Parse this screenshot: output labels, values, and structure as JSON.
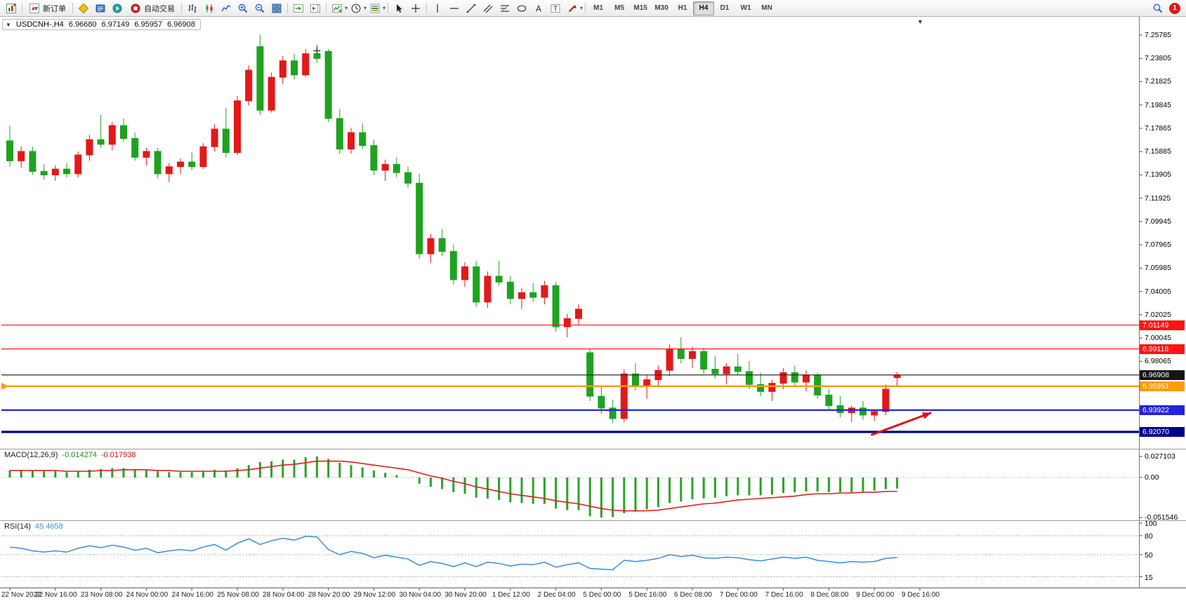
{
  "toolbar": {
    "new_order_label": "新订单",
    "autotrading_label": "自动交易",
    "timeframes": [
      "M1",
      "M5",
      "M15",
      "M30",
      "H1",
      "H4",
      "D1",
      "W1",
      "MN"
    ],
    "active_timeframe": "H4",
    "notification_count": "1",
    "items": [
      {
        "type": "icon",
        "name": "new-chart-icon"
      },
      {
        "type": "sep"
      },
      {
        "type": "button",
        "name": "new-order-button",
        "icon": "new-order-icon",
        "label_key": "new_order_label"
      },
      {
        "type": "sep"
      },
      {
        "type": "icon",
        "name": "metaeditor-icon"
      },
      {
        "type": "icon",
        "name": "terminal-icon"
      },
      {
        "type": "icon",
        "name": "strategy-tester-icon"
      },
      {
        "type": "button",
        "name": "autotrading-button",
        "icon": "autotrading-icon",
        "label_key": "autotrading_label"
      },
      {
        "type": "sep"
      },
      {
        "type": "icon",
        "name": "chart-bars-icon"
      },
      {
        "type": "icon",
        "name": "chart-candles-icon"
      },
      {
        "type": "icon",
        "name": "chart-line-icon"
      },
      {
        "type": "icon",
        "name": "zoom-in-icon"
      },
      {
        "type": "icon",
        "name": "zoom-out-icon"
      },
      {
        "type": "icon",
        "name": "tile-windows-icon"
      },
      {
        "type": "sep"
      },
      {
        "type": "icon",
        "name": "auto-scroll-icon"
      },
      {
        "type": "icon",
        "name": "chart-shift-icon"
      },
      {
        "type": "sep"
      },
      {
        "type": "icon",
        "name": "indicators-icon",
        "dropdown": true
      },
      {
        "type": "icon",
        "name": "periods-icon",
        "dropdown": true
      },
      {
        "type": "icon",
        "name": "templates-icon",
        "dropdown": true
      },
      {
        "type": "sep"
      },
      {
        "type": "icon",
        "name": "cursor-icon"
      },
      {
        "type": "icon",
        "name": "crosshair-icon"
      },
      {
        "type": "sep"
      },
      {
        "type": "icon",
        "name": "vertical-line-icon"
      },
      {
        "type": "icon",
        "name": "horizontal-line-icon"
      },
      {
        "type": "icon",
        "name": "trendline-icon"
      },
      {
        "type": "icon",
        "name": "channel-icon"
      },
      {
        "type": "icon",
        "name": "fibonacci-icon"
      },
      {
        "type": "icon",
        "name": "ellipse-icon"
      },
      {
        "type": "icon",
        "name": "text-icon"
      },
      {
        "type": "icon",
        "name": "text-label-icon"
      },
      {
        "type": "icon",
        "name": "arrows-icon",
        "dropdown": true
      },
      {
        "type": "sep"
      },
      {
        "type": "timeframes"
      },
      {
        "type": "spacer"
      },
      {
        "type": "icon",
        "name": "search-icon"
      },
      {
        "type": "badge",
        "name": "notification-badge"
      }
    ]
  },
  "chart": {
    "symbol": "USDCNH-,H4",
    "open": "6.96680",
    "high": "6.97149",
    "low": "6.95957",
    "close": "6.96908",
    "shift_marker": "▼",
    "one_click_arrow": "▼",
    "price_ticks": [
      "7.25785",
      "7.23805",
      "7.21825",
      "7.19845",
      "7.17865",
      "7.15885",
      "7.13905",
      "7.11925",
      "7.09945",
      "7.07965",
      "7.05985",
      "7.04005",
      "7.02025",
      "7.00045",
      "6.98065"
    ],
    "price_boxes": [
      {
        "value": "7.01149",
        "color": "#ff1414"
      },
      {
        "value": "6.99118",
        "color": "#ff1414"
      },
      {
        "value": "6.96908",
        "color": "#161616"
      },
      {
        "value": "6.95951",
        "color": "#ff9c00"
      },
      {
        "value": "6.93922",
        "color": "#2424d8"
      },
      {
        "value": "6.92070",
        "color": "#000585"
      }
    ],
    "time_labels": [
      "22 Nov 2022",
      "22 Nov 16:00",
      "23 Nov 08:00",
      "24 Nov 00:00",
      "24 Nov 16:00",
      "25 Nov 08:00",
      "28 Nov 04:00",
      "28 Nov 20:00",
      "29 Nov 12:00",
      "30 Nov 04:00",
      "30 Nov 20:00",
      "1 Dec 12:00",
      "2 Dec 04:00",
      "5 Dec 00:00",
      "5 Dec 16:00",
      "6 Dec 08:00",
      "7 Dec 00:00",
      "7 Dec 16:00",
      "8 Dec 08:00",
      "9 Dec 00:00",
      "9 Dec 16:00"
    ]
  },
  "indicators": {
    "macd": {
      "title": "MACD(12,26,9)",
      "main_value": "-0.014274",
      "signal_value": "-0.017938",
      "axis_labels": [
        "0.027103",
        "0.00",
        "-0.051546"
      ],
      "axis_values": [
        0.027103,
        0,
        -0.051546
      ],
      "histogram_color": "#28a428",
      "signal_color": "#dd2020"
    },
    "rsi": {
      "title": "RSI(14)",
      "value": "45.4658",
      "axis_labels": [
        "100",
        "80",
        "50",
        "15"
      ],
      "axis_values": [
        100,
        80,
        50,
        15
      ],
      "levels": [
        80,
        50,
        15
      ],
      "line_color": "#3a8dde"
    }
  },
  "chart_data": {
    "type": "candlestick+indicators",
    "symbol": "USDCNH-,H4",
    "timeframe": "H4",
    "ylim": [
      6.90758,
      7.27215
    ],
    "up_color": "#e41818",
    "down_color": "#1fa31f",
    "ohlc": [
      [
        7.168,
        7.181,
        7.146,
        7.151
      ],
      [
        7.151,
        7.163,
        7.145,
        7.159
      ],
      [
        7.159,
        7.163,
        7.139,
        7.142
      ],
      [
        7.142,
        7.148,
        7.135,
        7.139
      ],
      [
        7.139,
        7.147,
        7.134,
        7.144
      ],
      [
        7.144,
        7.149,
        7.137,
        7.14
      ],
      [
        7.14,
        7.159,
        7.137,
        7.156
      ],
      [
        7.156,
        7.173,
        7.151,
        7.169
      ],
      [
        7.169,
        7.19,
        7.162,
        7.165
      ],
      [
        7.165,
        7.184,
        7.16,
        7.181
      ],
      [
        7.181,
        7.187,
        7.167,
        7.17
      ],
      [
        7.17,
        7.175,
        7.151,
        7.154
      ],
      [
        7.154,
        7.162,
        7.147,
        7.159
      ],
      [
        7.159,
        7.162,
        7.136,
        7.14
      ],
      [
        7.14,
        7.149,
        7.133,
        7.146
      ],
      [
        7.146,
        7.153,
        7.14,
        7.15
      ],
      [
        7.15,
        7.158,
        7.143,
        7.146
      ],
      [
        7.146,
        7.166,
        7.144,
        7.163
      ],
      [
        7.163,
        7.182,
        7.159,
        7.178
      ],
      [
        7.178,
        7.196,
        7.154,
        7.158
      ],
      [
        7.158,
        7.206,
        7.156,
        7.202
      ],
      [
        7.202,
        7.232,
        7.198,
        7.228
      ],
      [
        7.248,
        7.258,
        7.19,
        7.194
      ],
      [
        7.194,
        7.226,
        7.192,
        7.222
      ],
      [
        7.222,
        7.24,
        7.216,
        7.236
      ],
      [
        7.236,
        7.242,
        7.22,
        7.224
      ],
      [
        7.224,
        7.246,
        7.222,
        7.242
      ],
      [
        7.242,
        7.25,
        7.234,
        7.238
      ],
      [
        7.244,
        7.246,
        7.184,
        7.187
      ],
      [
        7.187,
        7.195,
        7.157,
        7.161
      ],
      [
        7.161,
        7.179,
        7.157,
        7.175
      ],
      [
        7.175,
        7.183,
        7.161,
        7.164
      ],
      [
        7.164,
        7.169,
        7.139,
        7.143
      ],
      [
        7.143,
        7.152,
        7.134,
        7.148
      ],
      [
        7.148,
        7.154,
        7.137,
        7.141
      ],
      [
        7.141,
        7.146,
        7.128,
        7.132
      ],
      [
        7.132,
        7.14,
        7.068,
        7.072
      ],
      [
        7.072,
        7.089,
        7.064,
        7.085
      ],
      [
        7.085,
        7.093,
        7.07,
        7.074
      ],
      [
        7.074,
        7.08,
        7.046,
        7.05
      ],
      [
        7.05,
        7.065,
        7.044,
        7.061
      ],
      [
        7.061,
        7.066,
        7.027,
        7.031
      ],
      [
        7.031,
        7.057,
        7.026,
        7.053
      ],
      [
        7.053,
        7.066,
        7.045,
        7.048
      ],
      [
        7.048,
        7.053,
        7.029,
        7.034
      ],
      [
        7.034,
        7.043,
        7.025,
        7.039
      ],
      [
        7.039,
        7.047,
        7.031,
        7.035
      ],
      [
        7.035,
        7.049,
        7.029,
        7.045
      ],
      [
        7.045,
        7.048,
        7.006,
        7.01
      ],
      [
        7.01,
        7.021,
        7.001,
        7.017
      ],
      [
        7.017,
        7.029,
        7.011,
        7.025
      ],
      [
        6.988,
        6.991,
        6.947,
        6.951
      ],
      [
        6.951,
        6.959,
        6.936,
        6.941
      ],
      [
        6.941,
        6.948,
        6.928,
        6.932
      ],
      [
        6.932,
        6.974,
        6.929,
        6.97
      ],
      [
        6.97,
        6.979,
        6.956,
        6.96
      ],
      [
        6.96,
        6.969,
        6.949,
        6.965
      ],
      [
        6.965,
        6.977,
        6.959,
        6.973
      ],
      [
        6.973,
        6.995,
        6.968,
        6.991
      ],
      [
        6.991,
        7.001,
        6.979,
        6.983
      ],
      [
        6.983,
        6.993,
        6.975,
        6.989
      ],
      [
        6.989,
        6.991,
        6.97,
        6.974
      ],
      [
        6.974,
        6.985,
        6.966,
        6.97
      ],
      [
        6.97,
        6.979,
        6.961,
        6.976
      ],
      [
        6.976,
        6.987,
        6.969,
        6.972
      ],
      [
        6.972,
        6.981,
        6.957,
        6.961
      ],
      [
        6.961,
        6.971,
        6.951,
        6.955
      ],
      [
        6.955,
        6.965,
        6.947,
        6.962
      ],
      [
        6.962,
        6.975,
        6.957,
        6.971
      ],
      [
        6.971,
        6.977,
        6.959,
        6.963
      ],
      [
        6.963,
        6.973,
        6.955,
        6.969
      ],
      [
        6.969,
        6.971,
        6.949,
        6.952
      ],
      [
        6.952,
        6.957,
        6.939,
        6.943
      ],
      [
        6.943,
        6.951,
        6.933,
        6.937
      ],
      [
        6.937,
        6.943,
        6.929,
        6.941
      ],
      [
        6.941,
        6.947,
        6.931,
        6.935
      ],
      [
        6.935,
        6.94,
        6.93,
        6.938
      ],
      [
        6.938,
        6.961,
        6.935,
        6.957
      ],
      [
        6.9668,
        6.97149,
        6.95957,
        6.96908
      ]
    ],
    "hlines": [
      {
        "price": 7.01149,
        "color": "#ff1414",
        "width": 1.2
      },
      {
        "price": 6.99118,
        "color": "#ff1414",
        "width": 1.2
      },
      {
        "price": 6.96908,
        "color": "#2b2b2b",
        "width": 1.2
      },
      {
        "price": 6.95951,
        "color": "#ff9c00",
        "width": 2.4
      },
      {
        "price": 6.93922,
        "color": "#2424d8",
        "width": 2.2
      },
      {
        "price": 6.9207,
        "color": "#000585",
        "width": 3.2
      }
    ],
    "arrow": {
      "from_bar": 75.7,
      "from_price": 6.918,
      "to_bar": 81.0,
      "to_price": 6.937,
      "color": "#e01212"
    },
    "cross_marker": {
      "bar": 27,
      "price": 7.2445
    },
    "macd_ylim": [
      -0.0533,
      0.0316
    ],
    "macd_histogram": [
      0.009,
      0.01,
      0.009,
      0.008,
      0.008,
      0.007,
      0.008,
      0.01,
      0.011,
      0.012,
      0.012,
      0.01,
      0.009,
      0.008,
      0.007,
      0.007,
      0.007,
      0.008,
      0.01,
      0.009,
      0.012,
      0.016,
      0.02,
      0.021,
      0.023,
      0.023,
      0.026,
      0.0271,
      0.024,
      0.019,
      0.016,
      0.013,
      0.009,
      0.006,
      0.003,
      0.0,
      -0.008,
      -0.012,
      -0.015,
      -0.019,
      -0.021,
      -0.026,
      -0.027,
      -0.029,
      -0.032,
      -0.033,
      -0.034,
      -0.034,
      -0.04,
      -0.042,
      -0.042,
      -0.05,
      -0.0515,
      -0.051,
      -0.046,
      -0.044,
      -0.041,
      -0.038,
      -0.033,
      -0.031,
      -0.028,
      -0.027,
      -0.026,
      -0.024,
      -0.023,
      -0.023,
      -0.023,
      -0.022,
      -0.02,
      -0.019,
      -0.018,
      -0.018,
      -0.019,
      -0.019,
      -0.019,
      -0.018,
      -0.017,
      -0.015,
      -0.014274
    ],
    "macd_signal": [
      0.009,
      0.009,
      0.009,
      0.009,
      0.009,
      0.008,
      0.008,
      0.008,
      0.009,
      0.009,
      0.01,
      0.01,
      0.01,
      0.009,
      0.009,
      0.008,
      0.008,
      0.008,
      0.008,
      0.008,
      0.009,
      0.01,
      0.012,
      0.014,
      0.016,
      0.017,
      0.019,
      0.021,
      0.021,
      0.021,
      0.02,
      0.018,
      0.016,
      0.014,
      0.012,
      0.01,
      0.006,
      0.002,
      -0.001,
      -0.005,
      -0.008,
      -0.012,
      -0.015,
      -0.018,
      -0.021,
      -0.023,
      -0.025,
      -0.027,
      -0.03,
      -0.032,
      -0.034,
      -0.037,
      -0.04,
      -0.042,
      -0.043,
      -0.043,
      -0.043,
      -0.042,
      -0.04,
      -0.038,
      -0.036,
      -0.034,
      -0.033,
      -0.031,
      -0.029,
      -0.028,
      -0.027,
      -0.026,
      -0.025,
      -0.024,
      -0.022,
      -0.021,
      -0.021,
      -0.02,
      -0.02,
      -0.019,
      -0.019,
      -0.018,
      -0.017938
    ],
    "rsi_ylim": [
      0,
      100
    ],
    "rsi_values": [
      62,
      60,
      56,
      54,
      56,
      54,
      60,
      64,
      61,
      65,
      62,
      57,
      60,
      53,
      56,
      58,
      56,
      62,
      66,
      57,
      68,
      75,
      66,
      72,
      76,
      73,
      79,
      78,
      58,
      50,
      55,
      52,
      45,
      49,
      46,
      43,
      33,
      39,
      36,
      31,
      37,
      31,
      38,
      36,
      32,
      35,
      34,
      38,
      30,
      34,
      37,
      28,
      27,
      26,
      41,
      39,
      41,
      44,
      50,
      47,
      49,
      45,
      44,
      46,
      45,
      42,
      40,
      43,
      46,
      44,
      46,
      41,
      39,
      37,
      39,
      38,
      39,
      44,
      45.4658
    ],
    "x_labels": [
      "22 Nov 2022",
      "22 Nov 16:00",
      "23 Nov 08:00",
      "24 Nov 00:00",
      "24 Nov 16:00",
      "25 Nov 08:00",
      "28 Nov 04:00",
      "28 Nov 20:00",
      "29 Nov 12:00",
      "30 Nov 04:00",
      "30 Nov 20:00",
      "1 Dec 12:00",
      "2 Dec 04:00",
      "5 Dec 00:00",
      "5 Dec 16:00",
      "6 Dec 08:00",
      "7 Dec 00:00",
      "7 Dec 16:00",
      "8 Dec 08:00",
      "9 Dec 00:00",
      "9 Dec 16:00"
    ],
    "bars_per_label": 4
  }
}
